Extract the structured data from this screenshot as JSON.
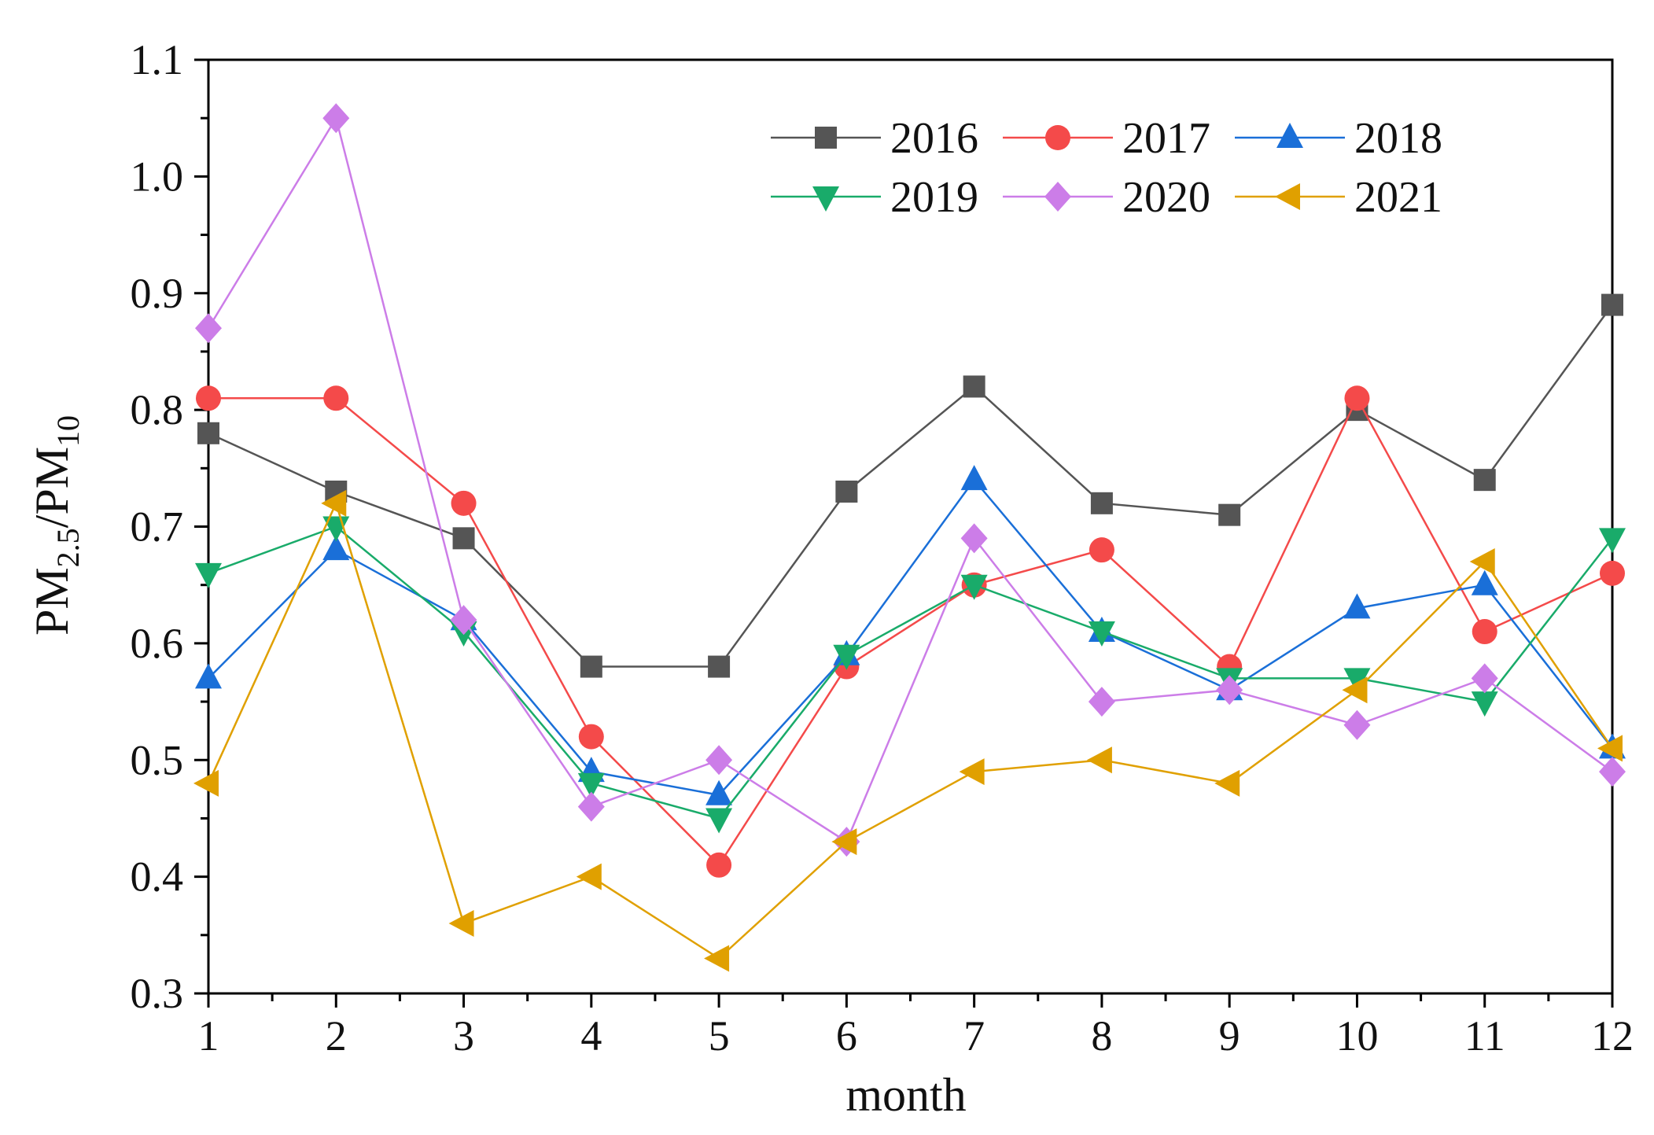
{
  "chart_data": {
    "type": "line",
    "title": "",
    "xlabel": "month",
    "ylabel": {
      "base1": "PM",
      "sub1": "2.5",
      "slash": "/PM",
      "sub2": "10"
    },
    "x": [
      1,
      2,
      3,
      4,
      5,
      6,
      7,
      8,
      9,
      10,
      11,
      12
    ],
    "x_ticks": [
      "1",
      "2",
      "3",
      "4",
      "5",
      "6",
      "7",
      "8",
      "9",
      "10",
      "11",
      "12"
    ],
    "xlim": [
      1,
      12
    ],
    "ylim": [
      0.3,
      1.1
    ],
    "y_ticks": [
      "0.3",
      "0.4",
      "0.5",
      "0.6",
      "0.7",
      "0.8",
      "0.9",
      "1.0",
      "1.1"
    ],
    "y_tick_values": [
      0.3,
      0.4,
      0.5,
      0.6,
      0.7,
      0.8,
      0.9,
      1.0,
      1.1
    ],
    "grid": false,
    "legend_position": "top-right",
    "series": [
      {
        "name": "2016",
        "color": "#555555",
        "marker": "square",
        "values": [
          0.78,
          0.73,
          0.69,
          0.58,
          0.58,
          0.73,
          0.82,
          0.72,
          0.71,
          0.8,
          0.74,
          0.89
        ]
      },
      {
        "name": "2017",
        "color": "#f44a4a",
        "marker": "circle",
        "values": [
          0.81,
          0.81,
          0.72,
          0.52,
          0.41,
          0.58,
          0.65,
          0.68,
          0.58,
          0.81,
          0.61,
          0.66
        ]
      },
      {
        "name": "2018",
        "color": "#1a6fd8",
        "marker": "triangle-up",
        "values": [
          0.57,
          0.68,
          0.62,
          0.49,
          0.47,
          0.59,
          0.74,
          0.61,
          0.56,
          0.63,
          0.65,
          0.51
        ]
      },
      {
        "name": "2019",
        "color": "#19ab6a",
        "marker": "triangle-down",
        "values": [
          0.66,
          0.7,
          0.61,
          0.48,
          0.45,
          0.59,
          0.65,
          0.61,
          0.57,
          0.57,
          0.55,
          0.69
        ]
      },
      {
        "name": "2020",
        "color": "#cc7de8",
        "marker": "diamond",
        "values": [
          0.87,
          1.05,
          0.62,
          0.46,
          0.5,
          0.43,
          0.69,
          0.55,
          0.56,
          0.53,
          0.57,
          0.49
        ]
      },
      {
        "name": "2021",
        "color": "#e0a000",
        "marker": "triangle-left",
        "values": [
          0.48,
          0.72,
          0.36,
          0.4,
          0.33,
          0.43,
          0.49,
          0.5,
          0.48,
          0.56,
          0.67,
          0.51
        ]
      }
    ]
  }
}
